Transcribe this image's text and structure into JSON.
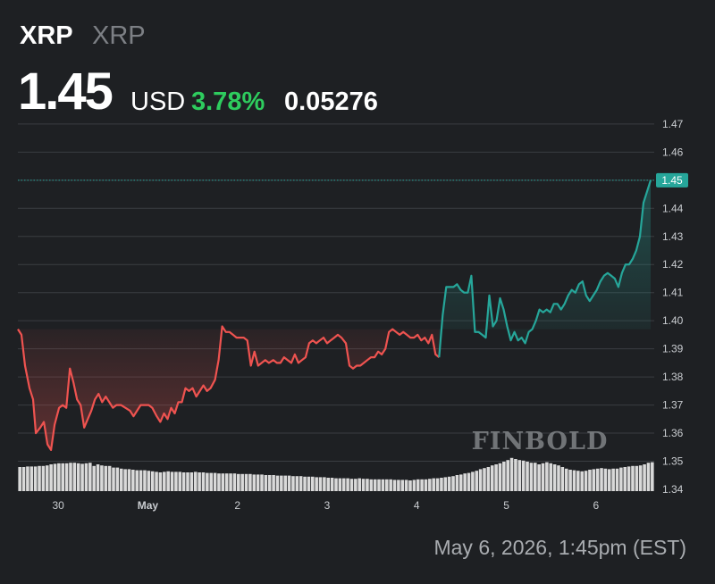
{
  "header": {
    "title": "XRP",
    "subtitle": "XRP",
    "price": "1.45",
    "currency": "USD",
    "change_pct": "3.78%",
    "change_abs": "0.05276"
  },
  "timestamp": "May 6, 2026, 1:45pm (EST)",
  "watermark": "FINBOLD",
  "colors": {
    "background": "#1e2023",
    "down": "#ef5350",
    "up": "#26a69a",
    "positive_text": "#2ecc5e",
    "grid": "#3a3d42",
    "volume": "#d9d9d9"
  },
  "chart_data": {
    "type": "line",
    "title": "",
    "xlabel": "",
    "ylabel": "",
    "ylim": [
      1.34,
      1.475
    ],
    "y_ticks": [
      1.34,
      1.35,
      1.36,
      1.37,
      1.38,
      1.39,
      1.4,
      1.41,
      1.42,
      1.43,
      1.44,
      1.45,
      1.46,
      1.47
    ],
    "y_tick_labels": [
      "1.34",
      "1.35",
      "1.36",
      "1.37",
      "1.38",
      "1.39",
      "1.40",
      "1.41",
      "1.42",
      "1.43",
      "1.44",
      "1.45",
      "1.46",
      "1.47"
    ],
    "x_tick_labels": [
      {
        "label": "30",
        "x": 0.45
      },
      {
        "label": "May",
        "x": 1.45
      },
      {
        "label": "2",
        "x": 2.45
      },
      {
        "label": "3",
        "x": 3.45
      },
      {
        "label": "4",
        "x": 4.45
      },
      {
        "label": "5",
        "x": 5.45
      },
      {
        "label": "6",
        "x": 6.45
      }
    ],
    "x_range": [
      0,
      7.1
    ],
    "current_price": 1.45,
    "current_price_label": "1.45",
    "baseline": 1.397,
    "series": [
      {
        "points": [
          [
            0.0,
            1.397
          ],
          [
            0.04,
            1.395
          ],
          [
            0.08,
            1.384
          ],
          [
            0.13,
            1.376
          ],
          [
            0.17,
            1.372
          ],
          [
            0.2,
            1.36
          ],
          [
            0.25,
            1.362
          ],
          [
            0.29,
            1.364
          ],
          [
            0.33,
            1.356
          ],
          [
            0.37,
            1.354
          ],
          [
            0.41,
            1.363
          ],
          [
            0.46,
            1.369
          ],
          [
            0.5,
            1.37
          ],
          [
            0.54,
            1.369
          ],
          [
            0.58,
            1.383
          ],
          [
            0.62,
            1.378
          ],
          [
            0.66,
            1.372
          ],
          [
            0.7,
            1.37
          ],
          [
            0.74,
            1.362
          ],
          [
            0.78,
            1.365
          ],
          [
            0.82,
            1.368
          ],
          [
            0.86,
            1.372
          ],
          [
            0.9,
            1.374
          ],
          [
            0.94,
            1.371
          ],
          [
            0.98,
            1.373
          ],
          [
            1.02,
            1.371
          ],
          [
            1.06,
            1.369
          ],
          [
            1.1,
            1.37
          ],
          [
            1.15,
            1.37
          ],
          [
            1.2,
            1.369
          ],
          [
            1.25,
            1.368
          ],
          [
            1.29,
            1.366
          ],
          [
            1.33,
            1.368
          ],
          [
            1.37,
            1.37
          ],
          [
            1.42,
            1.37
          ],
          [
            1.46,
            1.37
          ],
          [
            1.5,
            1.369
          ],
          [
            1.55,
            1.366
          ],
          [
            1.59,
            1.364
          ],
          [
            1.63,
            1.367
          ],
          [
            1.67,
            1.365
          ],
          [
            1.71,
            1.369
          ],
          [
            1.75,
            1.367
          ],
          [
            1.79,
            1.371
          ],
          [
            1.83,
            1.371
          ],
          [
            1.87,
            1.376
          ],
          [
            1.91,
            1.375
          ],
          [
            1.95,
            1.376
          ],
          [
            1.99,
            1.373
          ],
          [
            2.03,
            1.375
          ],
          [
            2.07,
            1.377
          ],
          [
            2.11,
            1.375
          ],
          [
            2.15,
            1.376
          ],
          [
            2.2,
            1.379
          ],
          [
            2.24,
            1.386
          ],
          [
            2.28,
            1.398
          ],
          [
            2.32,
            1.396
          ],
          [
            2.36,
            1.396
          ],
          [
            2.4,
            1.395
          ],
          [
            2.44,
            1.394
          ],
          [
            2.48,
            1.394
          ],
          [
            2.52,
            1.394
          ],
          [
            2.56,
            1.393
          ],
          [
            2.6,
            1.384
          ],
          [
            2.64,
            1.389
          ],
          [
            2.68,
            1.384
          ],
          [
            2.72,
            1.385
          ],
          [
            2.76,
            1.386
          ],
          [
            2.8,
            1.385
          ],
          [
            2.85,
            1.386
          ],
          [
            2.89,
            1.385
          ],
          [
            2.93,
            1.385
          ],
          [
            2.97,
            1.387
          ],
          [
            3.01,
            1.386
          ],
          [
            3.05,
            1.385
          ],
          [
            3.09,
            1.388
          ],
          [
            3.13,
            1.385
          ],
          [
            3.17,
            1.386
          ],
          [
            3.21,
            1.387
          ],
          [
            3.25,
            1.392
          ],
          [
            3.29,
            1.393
          ],
          [
            3.33,
            1.392
          ],
          [
            3.37,
            1.393
          ],
          [
            3.41,
            1.394
          ],
          [
            3.45,
            1.392
          ],
          [
            3.49,
            1.393
          ],
          [
            3.53,
            1.394
          ],
          [
            3.57,
            1.395
          ],
          [
            3.61,
            1.394
          ],
          [
            3.66,
            1.392
          ],
          [
            3.7,
            1.384
          ],
          [
            3.74,
            1.383
          ],
          [
            3.78,
            1.384
          ],
          [
            3.82,
            1.384
          ],
          [
            3.86,
            1.385
          ],
          [
            3.9,
            1.386
          ],
          [
            3.94,
            1.387
          ],
          [
            3.98,
            1.387
          ],
          [
            4.02,
            1.389
          ],
          [
            4.06,
            1.388
          ],
          [
            4.1,
            1.39
          ],
          [
            4.14,
            1.396
          ],
          [
            4.18,
            1.397
          ],
          [
            4.22,
            1.396
          ],
          [
            4.26,
            1.395
          ],
          [
            4.3,
            1.396
          ],
          [
            4.34,
            1.395
          ],
          [
            4.38,
            1.394
          ],
          [
            4.42,
            1.394
          ],
          [
            4.46,
            1.395
          ],
          [
            4.5,
            1.393
          ],
          [
            4.54,
            1.394
          ],
          [
            4.58,
            1.392
          ],
          [
            4.62,
            1.395
          ],
          [
            4.66,
            1.388
          ],
          [
            4.7,
            1.387
          ],
          [
            4.74,
            1.402
          ],
          [
            4.78,
            1.412
          ],
          [
            4.82,
            1.412
          ],
          [
            4.86,
            1.412
          ],
          [
            4.9,
            1.413
          ],
          [
            4.94,
            1.411
          ],
          [
            4.98,
            1.41
          ],
          [
            5.02,
            1.41
          ],
          [
            5.06,
            1.416
          ],
          [
            5.1,
            1.396
          ],
          [
            5.14,
            1.396
          ],
          [
            5.18,
            1.395
          ],
          [
            5.22,
            1.394
          ],
          [
            5.26,
            1.409
          ],
          [
            5.3,
            1.398
          ],
          [
            5.34,
            1.4
          ],
          [
            5.38,
            1.408
          ],
          [
            5.42,
            1.404
          ],
          [
            5.46,
            1.398
          ],
          [
            5.5,
            1.393
          ],
          [
            5.54,
            1.396
          ],
          [
            5.58,
            1.393
          ],
          [
            5.62,
            1.394
          ],
          [
            5.66,
            1.392
          ],
          [
            5.7,
            1.396
          ],
          [
            5.74,
            1.397
          ],
          [
            5.78,
            1.4
          ],
          [
            5.82,
            1.404
          ],
          [
            5.86,
            1.403
          ],
          [
            5.9,
            1.404
          ],
          [
            5.94,
            1.403
          ],
          [
            5.98,
            1.406
          ],
          [
            6.02,
            1.406
          ],
          [
            6.06,
            1.404
          ],
          [
            6.1,
            1.406
          ],
          [
            6.14,
            1.409
          ],
          [
            6.18,
            1.411
          ],
          [
            6.22,
            1.41
          ],
          [
            6.26,
            1.413
          ],
          [
            6.3,
            1.414
          ],
          [
            6.34,
            1.409
          ],
          [
            6.38,
            1.407
          ],
          [
            6.42,
            1.409
          ],
          [
            6.46,
            1.411
          ],
          [
            6.5,
            1.414
          ],
          [
            6.54,
            1.416
          ],
          [
            6.58,
            1.417
          ],
          [
            6.62,
            1.416
          ],
          [
            6.66,
            1.415
          ],
          [
            6.7,
            1.412
          ],
          [
            6.74,
            1.417
          ],
          [
            6.78,
            1.42
          ],
          [
            6.82,
            1.42
          ],
          [
            6.86,
            1.422
          ],
          [
            6.9,
            1.425
          ],
          [
            6.94,
            1.43
          ],
          [
            6.98,
            1.442
          ],
          [
            7.02,
            1.446
          ],
          [
            7.06,
            1.45
          ]
        ]
      }
    ],
    "volume": [
      0.45,
      0.45,
      0.46,
      0.46,
      0.46,
      0.47,
      0.47,
      0.48,
      0.5,
      0.51,
      0.52,
      0.52,
      0.52,
      0.53,
      0.53,
      0.52,
      0.51,
      0.52,
      0.53,
      0.47,
      0.5,
      0.48,
      0.47,
      0.47,
      0.44,
      0.44,
      0.42,
      0.41,
      0.41,
      0.4,
      0.39,
      0.39,
      0.39,
      0.38,
      0.37,
      0.36,
      0.35,
      0.36,
      0.37,
      0.36,
      0.36,
      0.36,
      0.35,
      0.35,
      0.35,
      0.36,
      0.35,
      0.35,
      0.34,
      0.34,
      0.34,
      0.33,
      0.33,
      0.33,
      0.33,
      0.33,
      0.32,
      0.32,
      0.32,
      0.32,
      0.31,
      0.31,
      0.31,
      0.3,
      0.3,
      0.3,
      0.29,
      0.29,
      0.29,
      0.29,
      0.28,
      0.28,
      0.28,
      0.27,
      0.27,
      0.27,
      0.26,
      0.26,
      0.26,
      0.25,
      0.25,
      0.24,
      0.24,
      0.24,
      0.24,
      0.23,
      0.23,
      0.24,
      0.23,
      0.23,
      0.22,
      0.22,
      0.22,
      0.22,
      0.22,
      0.22,
      0.21,
      0.21,
      0.21,
      0.21,
      0.2,
      0.21,
      0.22,
      0.22,
      0.22,
      0.23,
      0.24,
      0.24,
      0.25,
      0.26,
      0.27,
      0.28,
      0.3,
      0.31,
      0.33,
      0.34,
      0.36,
      0.38,
      0.41,
      0.43,
      0.45,
      0.48,
      0.5,
      0.52,
      0.55,
      0.58,
      0.62,
      0.6,
      0.58,
      0.57,
      0.55,
      0.53,
      0.53,
      0.5,
      0.52,
      0.54,
      0.52,
      0.5,
      0.48,
      0.45,
      0.42,
      0.4,
      0.39,
      0.38,
      0.37,
      0.38,
      0.4,
      0.41,
      0.42,
      0.43,
      0.42,
      0.41,
      0.42,
      0.42,
      0.44,
      0.45,
      0.46,
      0.47,
      0.47,
      0.48,
      0.5,
      0.53,
      0.54
    ]
  }
}
